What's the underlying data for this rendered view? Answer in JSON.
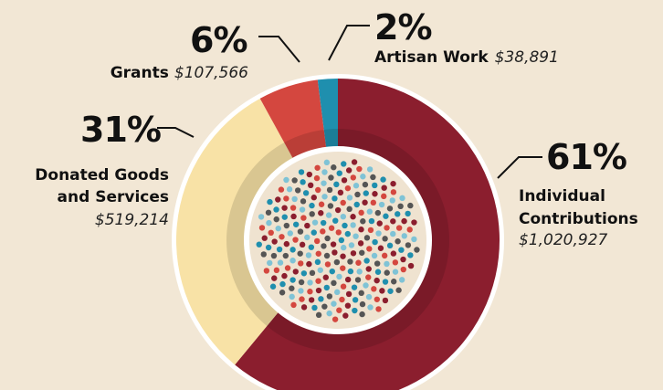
{
  "chart_data": {
    "type": "donut",
    "categories": [
      "Individual Contributions",
      "Donated Goods and Services",
      "Grants",
      "Artisan Work"
    ],
    "values": [
      61,
      31,
      6,
      2
    ],
    "value_labels": [
      "61%",
      "31%",
      "6%",
      "2%"
    ],
    "amounts": [
      "$1,020,927",
      "$519,214",
      "$107,566",
      "$38,891"
    ],
    "colors": [
      "#8b1e2e",
      "#f8e2a6",
      "#d4473f",
      "#1f8fae"
    ]
  }
}
